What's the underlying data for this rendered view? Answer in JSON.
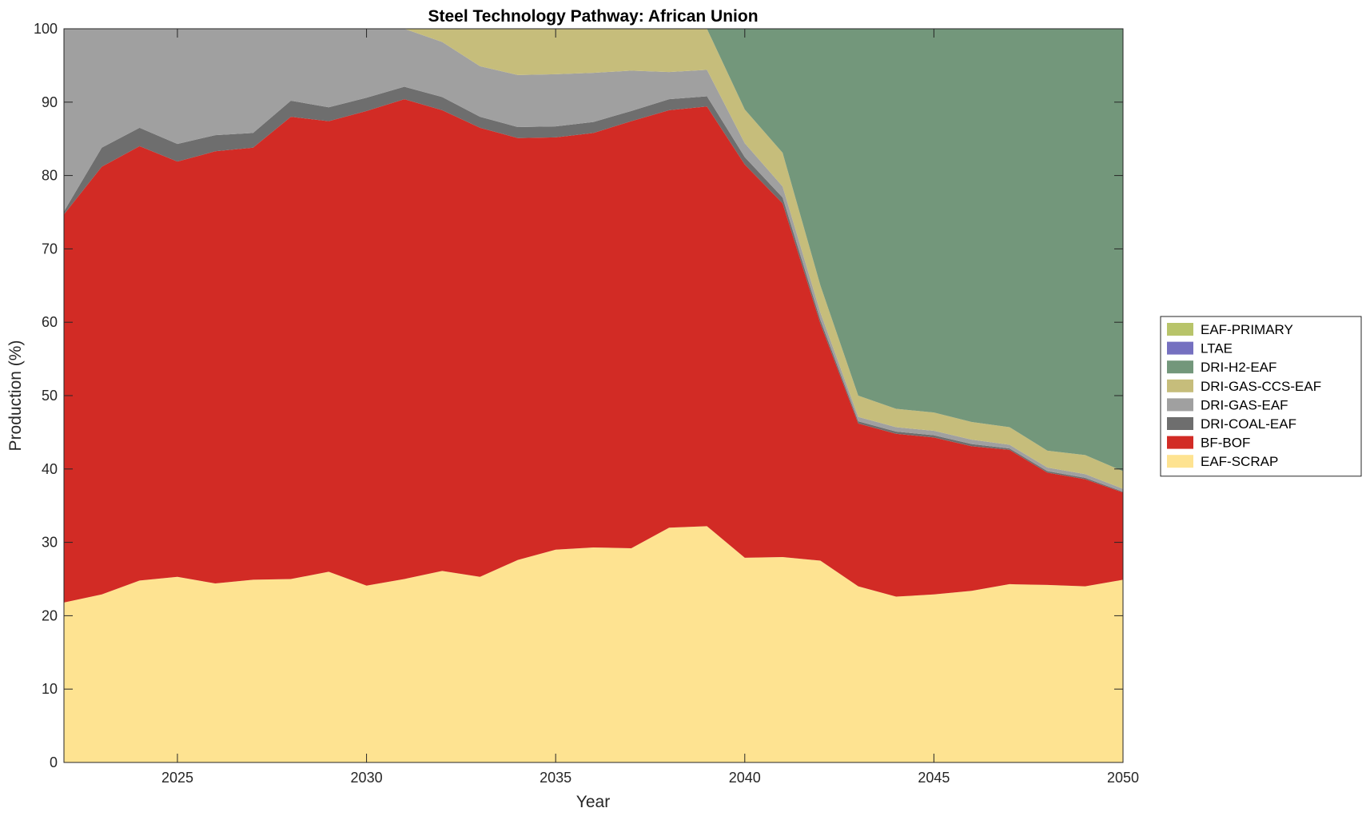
{
  "chart_data": {
    "type": "area",
    "stacked": true,
    "title": "Steel Technology Pathway: African Union",
    "xlabel": "Year",
    "ylabel": "Production (%)",
    "xlim": [
      2022,
      2050
    ],
    "ylim": [
      0,
      100
    ],
    "x_ticks": [
      2025,
      2030,
      2035,
      2040,
      2045,
      2050
    ],
    "y_ticks": [
      0,
      10,
      20,
      30,
      40,
      50,
      60,
      70,
      80,
      90,
      100
    ],
    "legend_position": "right",
    "x": [
      2022,
      2023,
      2024,
      2025,
      2026,
      2027,
      2028,
      2029,
      2030,
      2031,
      2032,
      2033,
      2034,
      2035,
      2036,
      2037,
      2038,
      2039,
      2040,
      2041,
      2042,
      2043,
      2044,
      2045,
      2046,
      2047,
      2048,
      2049,
      2050
    ],
    "series": [
      {
        "name": "EAF-SCRAP",
        "color": "#fee391",
        "values": [
          21.8,
          22.9,
          24.8,
          25.3,
          24.4,
          24.9,
          25.0,
          26.0,
          24.1,
          25.0,
          26.1,
          25.3,
          27.6,
          29.0,
          29.3,
          29.2,
          32.0,
          32.2,
          27.9,
          28.0,
          27.5,
          24.0,
          22.6,
          22.9,
          23.4,
          24.3,
          24.2,
          24.0,
          24.9
        ]
      },
      {
        "name": "BF-BOF",
        "color": "#d22b25",
        "values": [
          52.9,
          58.3,
          59.2,
          56.6,
          58.9,
          58.9,
          63.0,
          61.4,
          64.7,
          65.4,
          62.8,
          61.2,
          57.5,
          56.2,
          56.5,
          58.2,
          56.9,
          57.2,
          53.6,
          48.2,
          32.3,
          22.2,
          22.2,
          21.4,
          19.7,
          18.3,
          15.3,
          14.6,
          11.9
        ]
      },
      {
        "name": "DRI-COAL-EAF",
        "color": "#6e6e6e",
        "values": [
          0.4,
          2.6,
          2.5,
          2.4,
          2.2,
          2.0,
          2.2,
          1.9,
          1.8,
          1.7,
          1.8,
          1.5,
          1.5,
          1.5,
          1.5,
          1.4,
          1.5,
          1.4,
          1.0,
          0.8,
          0.5,
          0.3,
          0.3,
          0.3,
          0.3,
          0.2,
          0.2,
          0.2,
          0.1
        ]
      },
      {
        "name": "DRI-GAS-EAF",
        "color": "#a0a0a0",
        "values": [
          24.9,
          16.2,
          13.5,
          15.7,
          14.5,
          14.2,
          9.8,
          10.7,
          9.4,
          7.9,
          7.5,
          6.9,
          7.1,
          7.1,
          6.7,
          5.5,
          3.7,
          3.6,
          1.9,
          1.5,
          1.0,
          0.6,
          0.6,
          0.6,
          0.6,
          0.5,
          0.5,
          0.5,
          0.4
        ]
      },
      {
        "name": "DRI-GAS-CCS-EAF",
        "color": "#c6bd7b",
        "values": [
          0.0,
          0.0,
          0.0,
          0.0,
          0.0,
          0.0,
          0.0,
          0.0,
          0.0,
          0.0,
          1.8,
          5.1,
          6.3,
          6.2,
          6.0,
          5.7,
          5.9,
          5.6,
          4.6,
          4.6,
          3.7,
          2.9,
          2.5,
          2.5,
          2.4,
          2.4,
          2.3,
          2.6,
          2.4
        ]
      },
      {
        "name": "DRI-H2-EAF",
        "color": "#73977b",
        "values": [
          0.0,
          0.0,
          0.0,
          0.0,
          0.0,
          0.0,
          0.0,
          0.0,
          0.0,
          0.0,
          0.0,
          0.0,
          0.0,
          0.0,
          0.0,
          0.0,
          0.0,
          0.0,
          11.0,
          16.9,
          35.0,
          50.0,
          51.8,
          52.3,
          53.6,
          54.3,
          57.5,
          58.1,
          60.3
        ]
      },
      {
        "name": "LTAE",
        "color": "#7570c0",
        "values": [
          0,
          0,
          0,
          0,
          0,
          0,
          0,
          0,
          0,
          0,
          0,
          0,
          0,
          0,
          0,
          0,
          0,
          0,
          0,
          0,
          0,
          0,
          0,
          0,
          0,
          0,
          0,
          0,
          0
        ]
      },
      {
        "name": "EAF-PRIMARY",
        "color": "#b8c46a",
        "values": [
          0,
          0,
          0,
          0,
          0,
          0,
          0,
          0,
          0,
          0,
          0,
          0,
          0,
          0,
          0,
          0,
          0,
          0,
          0,
          0,
          0,
          0,
          0,
          0,
          0,
          0,
          0,
          0,
          0
        ]
      }
    ]
  }
}
